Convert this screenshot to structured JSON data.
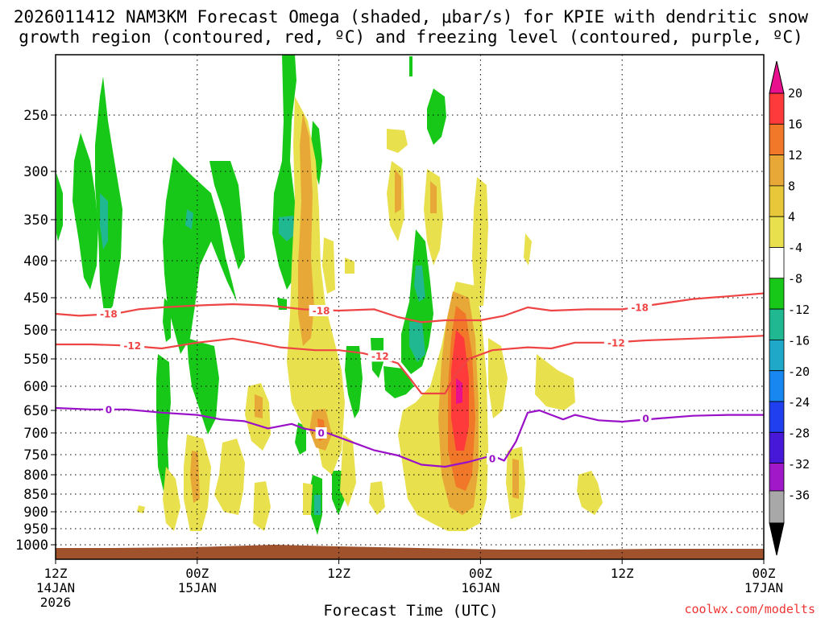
{
  "chart_data": {
    "type": "contour",
    "title_line1": "2026011412 NAM3KM Forecast Omega (shaded, μbar/s) for KPIE with dendritic snow",
    "title_line2": "growth region (contoured, red, ºC) and freezing level (contoured, purple, ºC)",
    "xlabel": "Forecast Time (UTC)",
    "credit": "coolwx.com/modelts",
    "y_ticks": [
      "250",
      "300",
      "350",
      "400",
      "450",
      "500",
      "550",
      "600",
      "650",
      "700",
      "750",
      "800",
      "850",
      "900",
      "950",
      "1000"
    ],
    "x_ticks": [
      {
        "hour": 0,
        "label1": "12Z",
        "label2": "14JAN",
        "label3": "2026"
      },
      {
        "hour": 12,
        "label1": "00Z",
        "label2": "15JAN",
        "label3": ""
      },
      {
        "hour": 24,
        "label1": "12Z",
        "label2": "",
        "label3": ""
      },
      {
        "hour": 36,
        "label1": "00Z",
        "label2": "16JAN",
        "label3": ""
      },
      {
        "hour": 48,
        "label1": "12Z",
        "label2": "",
        "label3": ""
      },
      {
        "hour": 60,
        "label1": "00Z",
        "label2": "17JAN",
        "label3": ""
      }
    ],
    "colorbar": {
      "labels": [
        "20",
        "16",
        "12",
        "8",
        "4",
        "-4",
        "-8",
        "-12",
        "-16",
        "-20",
        "-24",
        "-28",
        "-32",
        "-36"
      ],
      "colors": [
        "#ff3a3a",
        "#f07828",
        "#e8a838",
        "#e8c83a",
        "#e8e04c",
        "#ffffff",
        "#18c818",
        "#20b890",
        "#20a8c8",
        "#1888f0",
        "#2040f0",
        "#4818d8",
        "#a018c8",
        "#a8a8a8"
      ],
      "top_color": "#e8108c",
      "bottom_color": "#000000"
    },
    "lines": [
      {
        "name": "-18C isotherm",
        "label": "-18",
        "color": "#ee4444",
        "points": [
          [
            0,
            475
          ],
          [
            2,
            478
          ],
          [
            5,
            475
          ],
          [
            7,
            468
          ],
          [
            9,
            465
          ],
          [
            12,
            462
          ],
          [
            15,
            460
          ],
          [
            18,
            462
          ],
          [
            21,
            468
          ],
          [
            24,
            470
          ],
          [
            27,
            468
          ],
          [
            29,
            480
          ],
          [
            31,
            488
          ],
          [
            33,
            485
          ],
          [
            36,
            485
          ],
          [
            38,
            478
          ],
          [
            40,
            465
          ],
          [
            42,
            470
          ],
          [
            45,
            468
          ],
          [
            48,
            468
          ],
          [
            51,
            460
          ],
          [
            54,
            452
          ],
          [
            57,
            448
          ],
          [
            60,
            444
          ]
        ],
        "label_at": [
          [
            4.5,
            475
          ],
          [
            22.5,
            470
          ],
          [
            49.5,
            465
          ]
        ]
      },
      {
        "name": "-12C isotherm",
        "label": "-12",
        "color": "#ee4444",
        "points": [
          [
            0,
            525
          ],
          [
            3,
            525
          ],
          [
            6,
            527
          ],
          [
            9,
            532
          ],
          [
            12,
            522
          ],
          [
            15,
            515
          ],
          [
            17,
            522
          ],
          [
            19,
            530
          ],
          [
            22,
            535
          ],
          [
            24,
            535
          ],
          [
            26,
            540
          ],
          [
            27,
            545
          ],
          [
            29,
            558
          ],
          [
            30,
            585
          ],
          [
            31,
            615
          ],
          [
            33,
            615
          ],
          [
            34,
            575
          ],
          [
            35,
            550
          ],
          [
            37,
            535
          ],
          [
            40,
            530
          ],
          [
            42,
            532
          ],
          [
            44,
            522
          ],
          [
            47,
            522
          ],
          [
            50,
            518
          ],
          [
            54,
            515
          ],
          [
            58,
            512
          ],
          [
            60,
            510
          ]
        ],
        "label_at": [
          [
            6.5,
            527
          ],
          [
            27.5,
            545
          ],
          [
            47.5,
            522
          ]
        ]
      },
      {
        "name": "0C freezing level",
        "label": "0",
        "color": "#9a10c8",
        "points": [
          [
            0,
            645
          ],
          [
            3,
            648
          ],
          [
            6,
            648
          ],
          [
            9,
            655
          ],
          [
            12,
            660
          ],
          [
            14,
            670
          ],
          [
            16,
            674
          ],
          [
            18,
            690
          ],
          [
            20,
            680
          ],
          [
            21,
            690
          ],
          [
            23,
            700
          ],
          [
            25,
            720
          ],
          [
            27,
            740
          ],
          [
            29,
            752
          ],
          [
            31,
            775
          ],
          [
            33,
            780
          ],
          [
            35,
            768
          ],
          [
            37,
            752
          ],
          [
            38,
            765
          ],
          [
            39,
            720
          ],
          [
            40,
            655
          ],
          [
            41,
            650
          ],
          [
            42,
            660
          ],
          [
            43,
            670
          ],
          [
            44,
            660
          ],
          [
            46,
            672
          ],
          [
            48,
            675
          ],
          [
            51,
            668
          ],
          [
            54,
            662
          ],
          [
            57,
            660
          ],
          [
            60,
            660
          ]
        ],
        "label_at": [
          [
            4.5,
            648
          ],
          [
            22.5,
            700
          ],
          [
            37,
            760
          ],
          [
            50,
            668
          ]
        ]
      }
    ]
  }
}
